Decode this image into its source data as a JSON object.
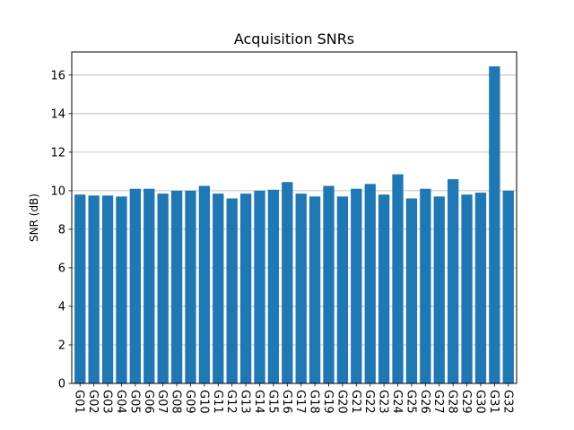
{
  "chart_data": {
    "type": "bar",
    "title": "Acquisition SNRs",
    "xlabel": "",
    "ylabel": "SNR (dB)",
    "ylim": [
      0,
      17.2
    ],
    "yticks": [
      "0",
      "2",
      "4",
      "6",
      "8",
      "10",
      "12",
      "14",
      "16"
    ],
    "grid": "horizontal",
    "categories": [
      "G01",
      "G02",
      "G03",
      "G04",
      "G05",
      "G06",
      "G07",
      "G08",
      "G09",
      "G10",
      "G11",
      "G12",
      "G13",
      "G14",
      "G15",
      "G16",
      "G17",
      "G18",
      "G19",
      "G20",
      "G21",
      "G22",
      "G23",
      "G24",
      "G25",
      "G26",
      "G27",
      "G28",
      "G29",
      "G30",
      "G31",
      "G32"
    ],
    "values": [
      9.8,
      9.75,
      9.75,
      9.7,
      10.1,
      10.1,
      9.85,
      10.0,
      10.0,
      10.25,
      9.85,
      9.6,
      9.85,
      10.0,
      10.05,
      10.45,
      9.85,
      9.7,
      10.25,
      9.7,
      10.1,
      10.35,
      9.8,
      10.85,
      9.6,
      10.1,
      9.7,
      10.6,
      9.8,
      9.9,
      16.45,
      10.0
    ],
    "bar_color": "#1f77b4",
    "grid_color": "#b0b0b0"
  }
}
